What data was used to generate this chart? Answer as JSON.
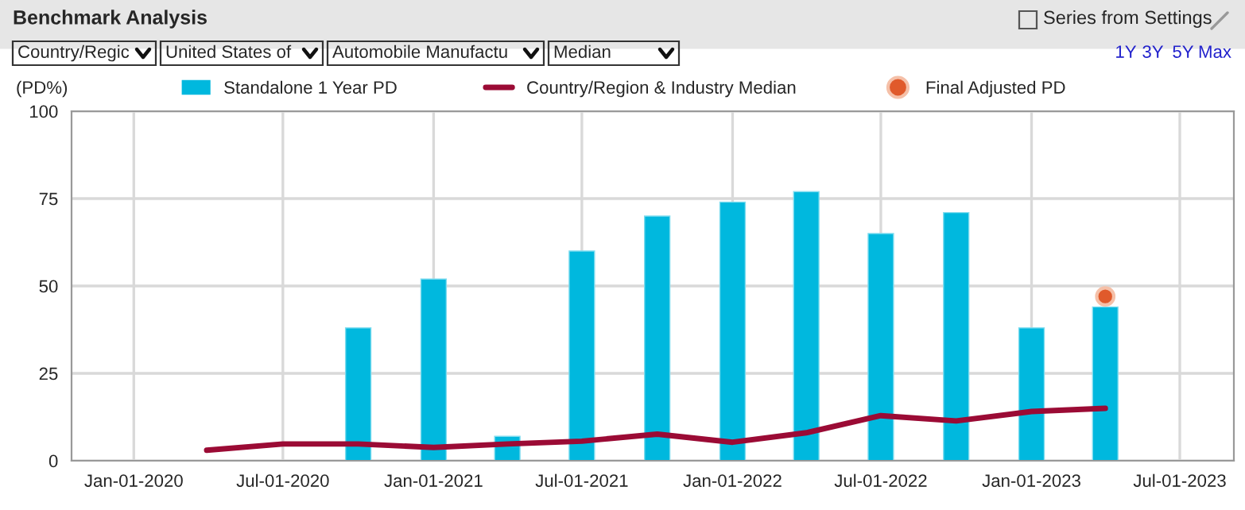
{
  "chart_data": {
    "type": "bar",
    "title": "Benchmark Analysis",
    "ylabel": "(PD%)",
    "annotations": [
      "Series from Settings",
      "Country/Regic",
      "United States of",
      "Automobile Manufactu",
      "Median",
      "1Y",
      "3Y",
      "5Y",
      "Max"
    ],
    "xlim": [
      "2019-10-17",
      "2023-09-05"
    ],
    "xticks": [
      {
        "value": "2020-01-01",
        "label": "Jan-01-2020"
      },
      {
        "value": "2020-07-01",
        "label": "Jul-01-2020"
      },
      {
        "value": "2021-01-01",
        "label": "Jan-01-2021"
      },
      {
        "value": "2021-07-01",
        "label": "Jul-01-2021"
      },
      {
        "value": "2022-01-01",
        "label": "Jan-01-2022"
      },
      {
        "value": "2022-07-01",
        "label": "Jul-01-2022"
      },
      {
        "value": "2023-01-01",
        "label": "Jan-01-2023"
      },
      {
        "value": "2023-07-01",
        "label": "Jul-01-2023"
      }
    ],
    "ylim": [
      0,
      100
    ],
    "yticks": [
      0,
      25,
      50,
      75,
      100
    ],
    "grid": true,
    "legend": "top",
    "series": [
      {
        "name": "Standalone 1 Year PD",
        "color": "#00b8de",
        "x": [
          "2020-10-01",
          "2021-01-01",
          "2021-04-01",
          "2021-07-01",
          "2021-10-01",
          "2022-01-01",
          "2022-04-01",
          "2022-07-01",
          "2022-10-01",
          "2023-01-01",
          "2023-04-01"
        ],
        "values": [
          38,
          52,
          7,
          60,
          70,
          74,
          77,
          65,
          71,
          38,
          44
        ]
      },
      {
        "name": "Country/Region & Industry Median",
        "type": "line",
        "color": "#9b0b35",
        "x": [
          "2020-03-30",
          "2020-07-01",
          "2020-10-01",
          "2021-01-01",
          "2021-04-01",
          "2021-07-01",
          "2021-10-01",
          "2022-01-01",
          "2022-04-01",
          "2022-07-01",
          "2022-10-01",
          "2023-01-01",
          "2023-04-01"
        ],
        "values": [
          3,
          4.8,
          4.8,
          3.8,
          4.8,
          5.6,
          7.6,
          5.3,
          8,
          12.9,
          11.4,
          14.1,
          15
        ]
      },
      {
        "name": "Final Adjusted PD",
        "type": "scatter",
        "marker": "circle",
        "color": "#e05a2b",
        "x": [
          "2023-04-01"
        ],
        "values": [
          47
        ]
      }
    ]
  }
}
